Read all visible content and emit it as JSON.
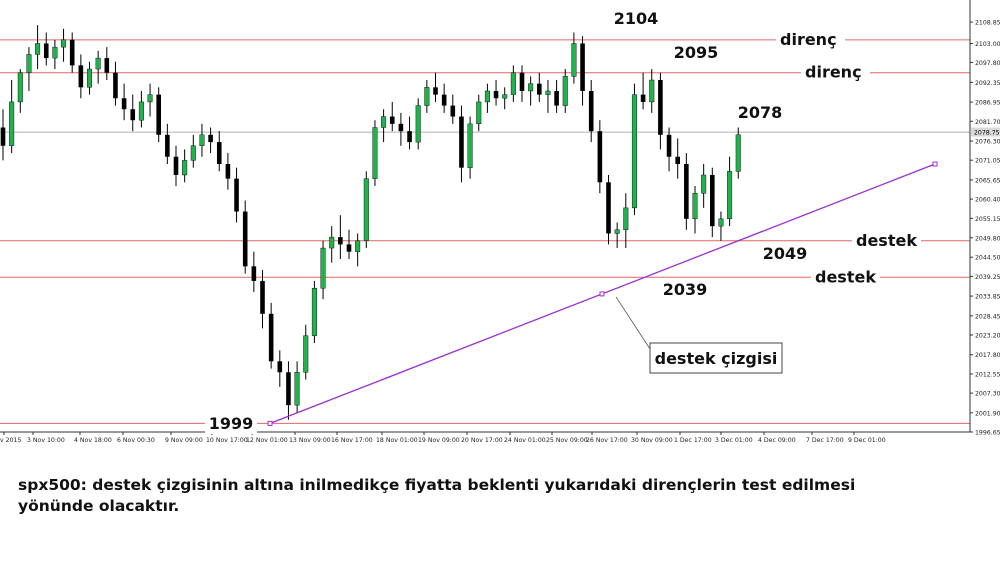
{
  "chart_data": {
    "type": "candlestick",
    "instrument": "spx500",
    "ylim": [
      1996.65,
      2114.9
    ],
    "y_ticks": [
      "2108.85",
      "2103.00",
      "2097.80",
      "2092.35",
      "2086.95",
      "2081.70",
      "2076.30",
      "2071.05",
      "2065.65",
      "2060.40",
      "2055.15",
      "2049.80",
      "2044.50",
      "2039.25",
      "2033.85",
      "2028.45",
      "2023.20",
      "2017.80",
      "2012.55",
      "2007.30",
      "2001.90",
      "1996.65"
    ],
    "x_ticks": [
      "v 2015",
      "3 Nov 10:00",
      "4 Nov 18:00",
      "6 Nov 00:30",
      "9 Nov 09:00",
      "10 Nov 17:00",
      "12 Nov 01:00",
      "13 Nov 09:00",
      "16 Nov 17:00",
      "18 Nov 01:00",
      "19 Nov 09:00",
      "20 Nov 17:00",
      "24 Nov 01:00",
      "25 Nov 09:00",
      "26 Nov 17:00",
      "30 Nov 09:00",
      "1 Dec 17:00",
      "3 Dec 01:00",
      "4 Dec 09:00",
      "7 Dec 17:00",
      "9 Dec 01:00"
    ],
    "current_price": "2078.75",
    "current_price_value": 2078.75,
    "bull_color": "#22b14c",
    "bear_color": "#000000",
    "level_color": "#e06666",
    "trend_color": "#9b30d0",
    "candles": [
      [
        2080,
        2085,
        2071,
        2075
      ],
      [
        2075,
        2093,
        2073,
        2087
      ],
      [
        2087,
        2096,
        2084,
        2095
      ],
      [
        2095,
        2102,
        2090,
        2100
      ],
      [
        2100,
        2108,
        2096,
        2103
      ],
      [
        2103,
        2106,
        2097,
        2099
      ],
      [
        2099,
        2104,
        2096,
        2102
      ],
      [
        2102,
        2107,
        2098,
        2104
      ],
      [
        2104,
        2106,
        2095,
        2097
      ],
      [
        2097,
        2100,
        2088,
        2091
      ],
      [
        2091,
        2098,
        2089,
        2096
      ],
      [
        2096,
        2101,
        2092,
        2099
      ],
      [
        2099,
        2102,
        2093,
        2095
      ],
      [
        2095,
        2098,
        2086,
        2088
      ],
      [
        2088,
        2092,
        2082,
        2085
      ],
      [
        2085,
        2089,
        2079,
        2082
      ],
      [
        2082,
        2090,
        2080,
        2087
      ],
      [
        2087,
        2092,
        2083,
        2089
      ],
      [
        2089,
        2091,
        2076,
        2078
      ],
      [
        2078,
        2081,
        2070,
        2072
      ],
      [
        2072,
        2075,
        2064,
        2067
      ],
      [
        2067,
        2074,
        2065,
        2071
      ],
      [
        2071,
        2078,
        2069,
        2075
      ],
      [
        2075,
        2081,
        2072,
        2078
      ],
      [
        2078,
        2080,
        2073,
        2076
      ],
      [
        2076,
        2079,
        2068,
        2070
      ],
      [
        2070,
        2073,
        2063,
        2066
      ],
      [
        2066,
        2069,
        2054,
        2057
      ],
      [
        2057,
        2060,
        2040,
        2042
      ],
      [
        2042,
        2046,
        2035,
        2038
      ],
      [
        2038,
        2041,
        2025,
        2029
      ],
      [
        2029,
        2032,
        2014,
        2016
      ],
      [
        2016,
        2019,
        2009,
        2013
      ],
      [
        2013,
        2016,
        2000,
        2004
      ],
      [
        2004,
        2016,
        2002,
        2013
      ],
      [
        2013,
        2026,
        2011,
        2023
      ],
      [
        2023,
        2038,
        2021,
        2036
      ],
      [
        2036,
        2049,
        2033,
        2047
      ],
      [
        2047,
        2053,
        2043,
        2050
      ],
      [
        2050,
        2056,
        2044,
        2048
      ],
      [
        2048,
        2052,
        2044,
        2046
      ],
      [
        2046,
        2051,
        2042,
        2049
      ],
      [
        2049,
        2068,
        2047,
        2066
      ],
      [
        2066,
        2082,
        2064,
        2080
      ],
      [
        2080,
        2085,
        2076,
        2083
      ],
      [
        2083,
        2087,
        2079,
        2081
      ],
      [
        2081,
        2084,
        2075,
        2079
      ],
      [
        2079,
        2083,
        2074,
        2076
      ],
      [
        2076,
        2088,
        2074,
        2086
      ],
      [
        2086,
        2093,
        2084,
        2091
      ],
      [
        2091,
        2095,
        2087,
        2089
      ],
      [
        2089,
        2092,
        2084,
        2086
      ],
      [
        2086,
        2089,
        2081,
        2083
      ],
      [
        2083,
        2086,
        2065,
        2069
      ],
      [
        2069,
        2083,
        2066,
        2081
      ],
      [
        2081,
        2089,
        2079,
        2087
      ],
      [
        2087,
        2092,
        2084,
        2090
      ],
      [
        2090,
        2093,
        2086,
        2088
      ],
      [
        2088,
        2091,
        2085,
        2089
      ],
      [
        2089,
        2097,
        2087,
        2095
      ],
      [
        2095,
        2097,
        2087,
        2090
      ],
      [
        2090,
        2094,
        2086,
        2092
      ],
      [
        2092,
        2095,
        2087,
        2089
      ],
      [
        2089,
        2093,
        2084,
        2090
      ],
      [
        2090,
        2093,
        2084,
        2086
      ],
      [
        2086,
        2096,
        2084,
        2094
      ],
      [
        2094,
        2106,
        2092,
        2103
      ],
      [
        2103,
        2105,
        2086,
        2090
      ],
      [
        2090,
        2093,
        2076,
        2079
      ],
      [
        2079,
        2082,
        2062,
        2065
      ],
      [
        2065,
        2067,
        2048,
        2051
      ],
      [
        2051,
        2054,
        2047,
        2052
      ],
      [
        2052,
        2062,
        2047,
        2058
      ],
      [
        2058,
        2092,
        2056,
        2089
      ],
      [
        2089,
        2095,
        2085,
        2087
      ],
      [
        2087,
        2096,
        2084,
        2093
      ],
      [
        2093,
        2095,
        2074,
        2078
      ],
      [
        2078,
        2080,
        2068,
        2072
      ],
      [
        2072,
        2077,
        2066,
        2070
      ],
      [
        2070,
        2073,
        2052,
        2055
      ],
      [
        2055,
        2064,
        2051,
        2062
      ],
      [
        2062,
        2070,
        2058,
        2067
      ],
      [
        2067,
        2069,
        2050,
        2053
      ],
      [
        2053,
        2057,
        2049,
        2055
      ],
      [
        2055,
        2072,
        2053,
        2068
      ],
      [
        2068,
        2080,
        2066,
        2078
      ]
    ],
    "horizontal_levels": [
      {
        "value": 2104,
        "label": "direnç"
      },
      {
        "value": 2095,
        "label": "direnç"
      },
      {
        "value": 2049,
        "label": "destek"
      },
      {
        "value": 2039,
        "label": "destek"
      },
      {
        "value": 1999,
        "label": ""
      }
    ],
    "trendline": {
      "label": "destek çizgisi",
      "points": [
        [
          0,
          1999
        ],
        [
          61,
          2035
        ],
        [
          100,
          2070
        ]
      ]
    },
    "annotations": [
      {
        "text": "2104",
        "value": 2104
      },
      {
        "text": "2095",
        "value": 2095
      },
      {
        "text": "2078",
        "value": 2078
      },
      {
        "text": "2049",
        "value": 2049
      },
      {
        "text": "2039",
        "value": 2039
      },
      {
        "text": "1999",
        "value": 1999
      }
    ]
  },
  "note_text": "spx500: destek çizgisinin altına inilmedikçe fiyatta beklenti yukarıdaki dirençlerin test edilmesi yönünde olacaktır."
}
